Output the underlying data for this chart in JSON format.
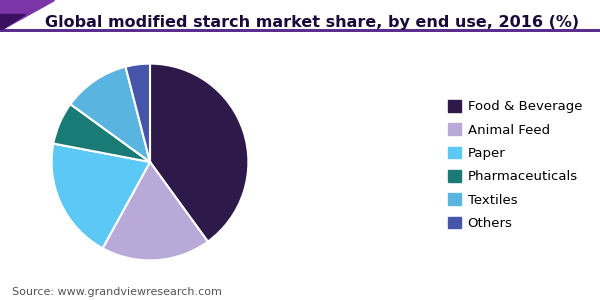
{
  "title": "Global modified starch market share, by end use, 2016 (%)",
  "source": "Source: www.grandviewresearch.com",
  "labels": [
    "Food & Beverage",
    "Animal Feed",
    "Paper",
    "Pharmaceuticals",
    "Textiles",
    "Others"
  ],
  "values": [
    40,
    18,
    20,
    7,
    11,
    4
  ],
  "colors": [
    "#2e1a4a",
    "#b8a9d9",
    "#5bc8f5",
    "#1a7a75",
    "#5ab4e0",
    "#4455aa"
  ],
  "startangle": 90,
  "background_color": "#ffffff",
  "title_fontsize": 11.5,
  "legend_fontsize": 9.5,
  "source_fontsize": 8,
  "title_color": "#1a0a3a",
  "source_color": "#555555"
}
